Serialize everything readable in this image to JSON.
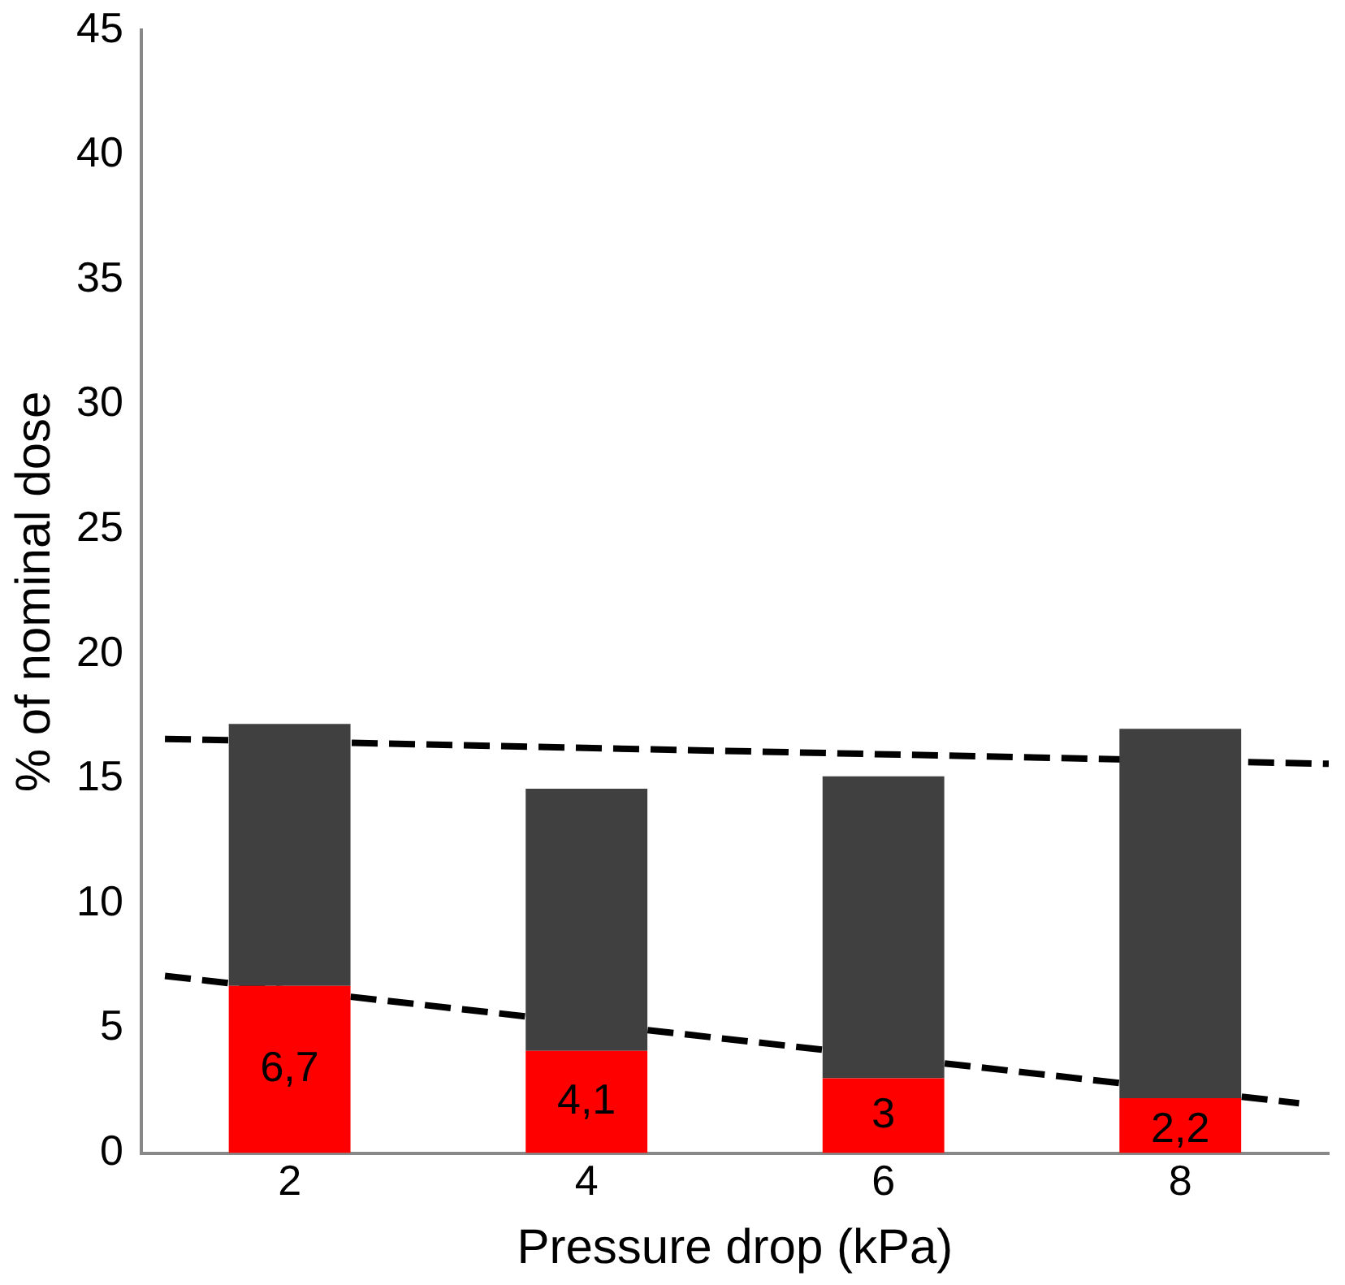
{
  "chart_data": {
    "type": "bar",
    "stacked": true,
    "xlabel": "Pressure drop (kPa)",
    "ylabel": "% of nominal dose",
    "x": [
      2,
      4,
      6,
      8
    ],
    "xlim": [
      1,
      9
    ],
    "xticks": [
      2,
      4,
      6,
      8
    ],
    "ylim": [
      0,
      45
    ],
    "yticks": [
      0,
      5,
      10,
      15,
      20,
      25,
      30,
      35,
      40,
      45
    ],
    "grid": false,
    "legend": false,
    "series": [
      {
        "color": "#ff0000",
        "values": [
          6.7,
          4.1,
          3,
          2.2
        ],
        "value_labels": [
          "6,7",
          "4,1",
          "3",
          "2,2"
        ]
      },
      {
        "color": "#404040",
        "values": [
          10.5,
          10.5,
          12.1,
          14.8
        ]
      },
      {
        "type": "line",
        "color": "#000000",
        "line_style": "dashed",
        "marker": "none",
        "x": [
          1.16,
          9
        ],
        "values": [
          16.6,
          15.6
        ]
      },
      {
        "type": "line",
        "color": "#000000",
        "line_style": "dashed",
        "marker": "none",
        "x": [
          1.16,
          8.8
        ],
        "values": [
          7.1,
          2.0
        ]
      }
    ]
  }
}
